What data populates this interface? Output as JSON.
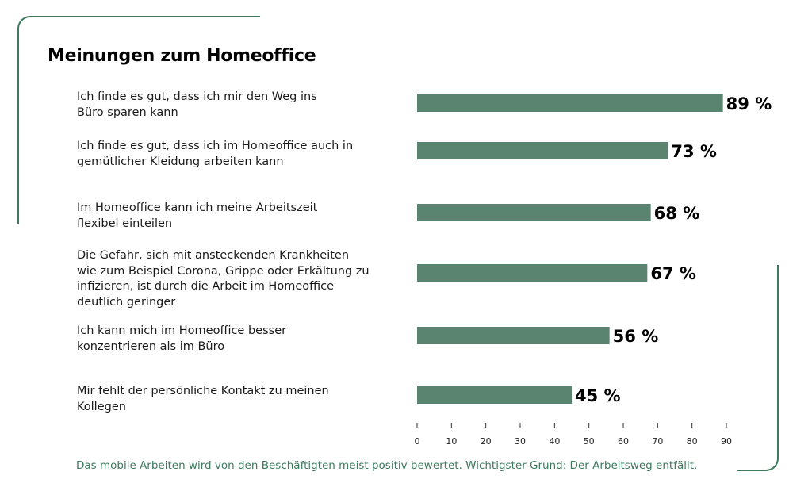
{
  "title": "Meinungen zum Homeoffice",
  "footnote": "Das mobile Arbeiten wird von den Beschäftigten meist positiv bewertet. Wichtigster Grund: Der Arbeitsweg entfällt.",
  "colors": {
    "bar": "#5b8470",
    "accent": "#3d7a5e",
    "text": "#000000"
  },
  "chart_data": {
    "type": "bar",
    "orientation": "horizontal",
    "categories": [
      "Ich finde es gut, dass ich mir den Weg ins Büro sparen kann",
      "Ich finde es gut, dass ich im Homeoffice auch in gemütlicher Kleidung arbeiten kann",
      "Im Homeoffice kann ich meine Arbeitszeit flexibel einteilen",
      "Die Gefahr, sich mit ansteckenden Krankheiten wie zum Beispiel Corona, Grippe oder Erkältung zu infizieren, ist durch die Arbeit im Homeoffice deutlich geringer",
      "Ich kann mich im Homeoffice besser konzentrieren als im Büro",
      "Mir fehlt der persönliche Kontakt zu meinen Kollegen"
    ],
    "values": [
      89,
      73,
      68,
      67,
      56,
      45
    ],
    "value_labels": [
      "89 %",
      "73 %",
      "68 %",
      "67 %",
      "56 %",
      "45 %"
    ],
    "xticks": [
      0,
      10,
      20,
      30,
      40,
      50,
      60,
      70,
      80,
      90
    ],
    "xlim": [
      0,
      90
    ],
    "grid": false,
    "legend": "none"
  }
}
